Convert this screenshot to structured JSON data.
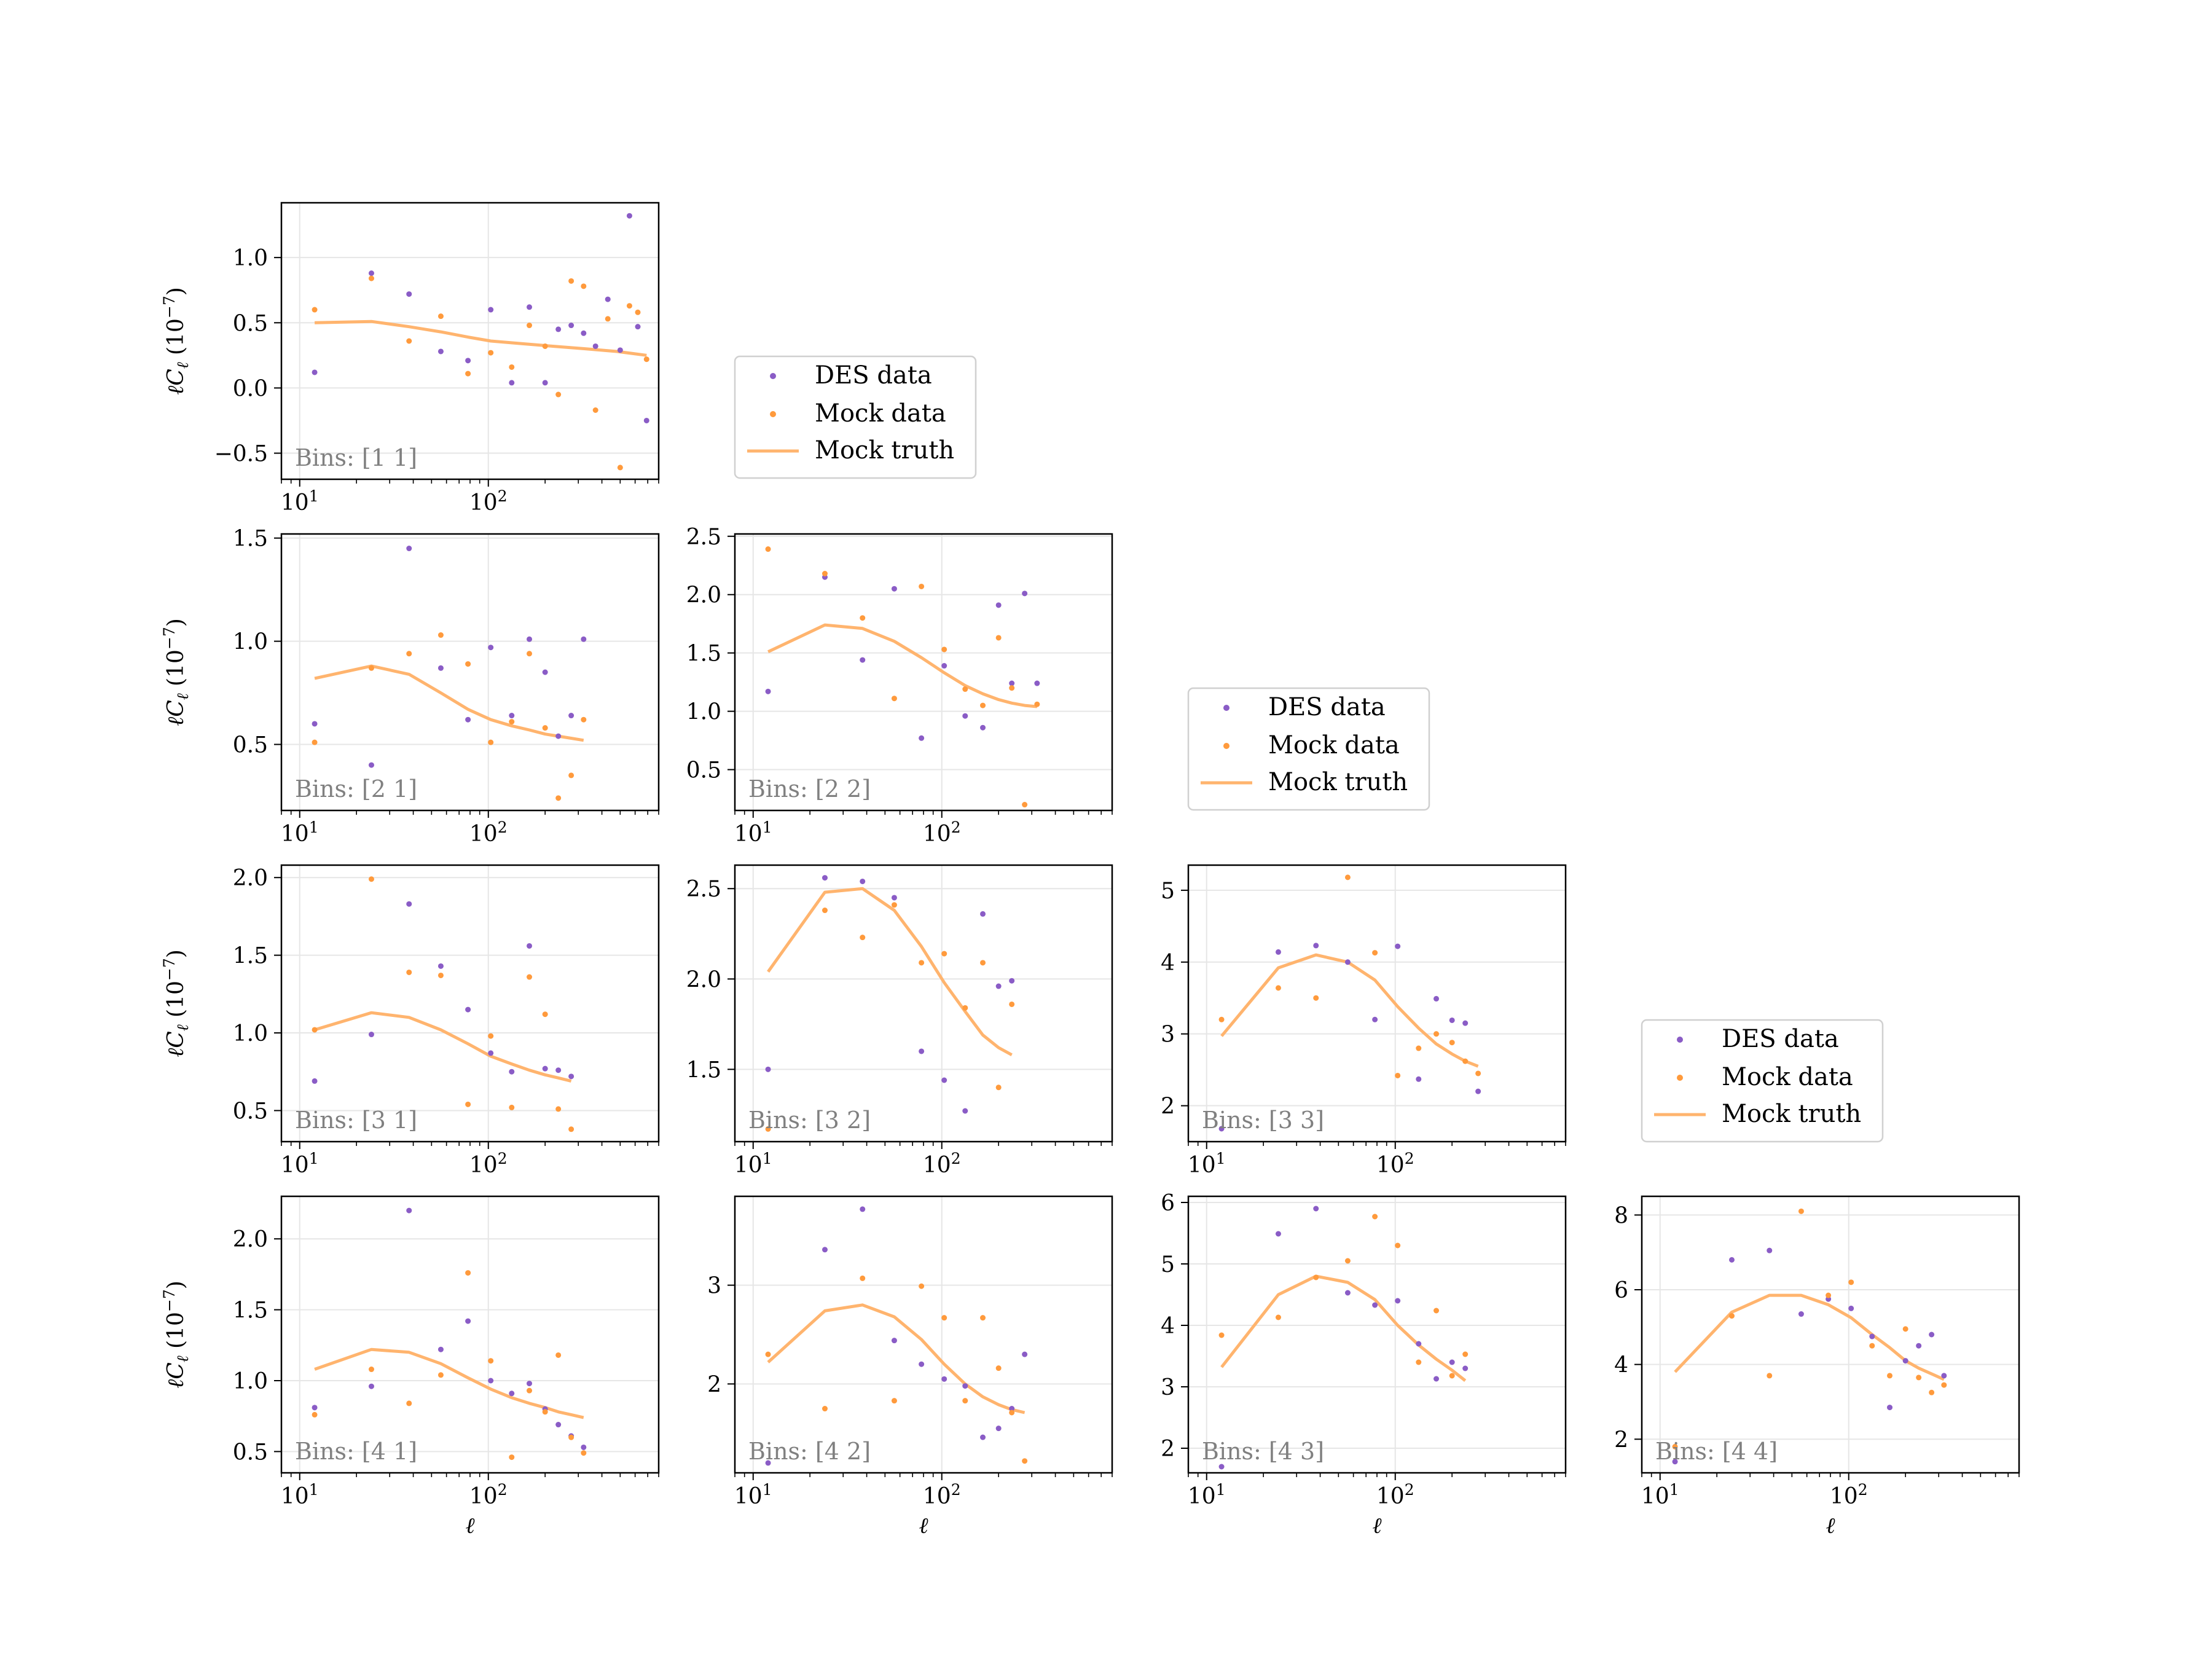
{
  "figure": {
    "colors": {
      "des": "#8a5cc6",
      "mock": "#ff9a3c",
      "truth": "#ffb46e"
    }
  },
  "axis_text": {
    "xlabel": "ℓ",
    "ylabel_main": "ℓC",
    "ylabel_sub": "ℓ",
    "ylabel_units": " (10",
    "ylabel_exp": "−7",
    "ylabel_close": ")",
    "xtick_base": "10",
    "xtick_exp1": "1",
    "xtick_exp2": "2"
  },
  "legend": {
    "entries": [
      "DES data",
      "Mock data",
      "Mock truth"
    ]
  },
  "chart_data": [
    {
      "type": "scatter",
      "title": "Bins: [1 1]",
      "xlabel": "",
      "ylabel": "ℓCℓ (10−7)",
      "xscale": "log",
      "xlim": [
        8,
        800
      ],
      "ylim": [
        -0.7,
        1.42
      ],
      "yticks": [
        -0.5,
        0.0,
        0.5,
        1.0
      ],
      "ytick_labels": [
        "−0.5",
        "0.0",
        "0.5",
        "1.0"
      ],
      "series": [
        {
          "name": "DES data",
          "x": [
            12,
            24,
            38,
            56,
            78,
            103,
            133,
            165,
            200,
            235,
            275,
            320,
            370,
            430,
            500,
            560,
            620,
            690
          ],
          "y": [
            0.12,
            0.88,
            0.72,
            0.28,
            0.21,
            0.6,
            0.04,
            0.62,
            0.04,
            0.45,
            0.48,
            0.42,
            0.32,
            0.68,
            0.29,
            1.32,
            0.47,
            -0.25
          ]
        },
        {
          "name": "Mock data",
          "x": [
            12,
            24,
            38,
            56,
            78,
            103,
            133,
            165,
            200,
            235,
            275,
            320,
            370,
            430,
            500,
            560,
            620,
            690
          ],
          "y": [
            0.6,
            0.84,
            0.36,
            0.55,
            0.11,
            0.27,
            0.16,
            0.48,
            0.32,
            -0.05,
            0.82,
            0.78,
            -0.17,
            0.53,
            -0.61,
            0.63,
            0.58,
            0.22
          ]
        },
        {
          "name": "Mock truth",
          "x": [
            12,
            24,
            38,
            56,
            78,
            103,
            150,
            220,
            330,
            480,
            690
          ],
          "y": [
            0.5,
            0.51,
            0.47,
            0.43,
            0.39,
            0.36,
            0.34,
            0.32,
            0.3,
            0.28,
            0.25
          ]
        }
      ]
    },
    {
      "type": "scatter",
      "title": "Bins: [2 1]",
      "xlabel": "",
      "ylabel": "ℓCℓ (10−7)",
      "xscale": "log",
      "xlim": [
        8,
        800
      ],
      "ylim": [
        0.18,
        1.52
      ],
      "yticks": [
        0.5,
        1.0,
        1.5
      ],
      "ytick_labels": [
        "0.5",
        "1.0",
        "1.5"
      ],
      "series": [
        {
          "name": "DES data",
          "x": [
            12,
            24,
            38,
            56,
            78,
            103,
            133,
            165,
            200,
            235,
            275,
            320
          ],
          "y": [
            0.6,
            0.4,
            1.45,
            0.87,
            0.62,
            0.97,
            0.64,
            1.01,
            0.85,
            0.54,
            0.64,
            1.01
          ]
        },
        {
          "name": "Mock data",
          "x": [
            12,
            24,
            38,
            56,
            78,
            103,
            133,
            165,
            200,
            235,
            275,
            320
          ],
          "y": [
            0.51,
            0.87,
            0.94,
            1.03,
            0.89,
            0.51,
            0.61,
            0.94,
            0.58,
            0.24,
            0.35,
            0.62
          ]
        },
        {
          "name": "Mock truth",
          "x": [
            12,
            24,
            38,
            56,
            78,
            103,
            133,
            165,
            200,
            235,
            275,
            320
          ],
          "y": [
            0.82,
            0.88,
            0.84,
            0.75,
            0.67,
            0.62,
            0.59,
            0.57,
            0.55,
            0.54,
            0.53,
            0.52
          ]
        }
      ]
    },
    {
      "type": "scatter",
      "title": "Bins: [2 2]",
      "xlabel": "",
      "ylabel": "",
      "xscale": "log",
      "xlim": [
        8,
        800
      ],
      "ylim": [
        0.15,
        2.52
      ],
      "yticks": [
        0.5,
        1.0,
        1.5,
        2.0,
        2.5
      ],
      "ytick_labels": [
        "0.5",
        "1.0",
        "1.5",
        "2.0",
        "2.5"
      ],
      "series": [
        {
          "name": "DES data",
          "x": [
            12,
            24,
            38,
            56,
            78,
            103,
            133,
            165,
            200,
            235,
            275,
            320
          ],
          "y": [
            1.17,
            2.15,
            1.44,
            2.05,
            0.77,
            1.39,
            0.96,
            0.86,
            1.91,
            1.24,
            2.01,
            1.24
          ]
        },
        {
          "name": "Mock data",
          "x": [
            12,
            24,
            38,
            56,
            78,
            103,
            133,
            165,
            200,
            235,
            275,
            320
          ],
          "y": [
            2.39,
            2.18,
            1.8,
            1.11,
            2.07,
            1.53,
            1.19,
            1.05,
            1.63,
            1.2,
            0.2,
            1.06
          ]
        },
        {
          "name": "Mock truth",
          "x": [
            12,
            24,
            38,
            56,
            78,
            103,
            133,
            165,
            200,
            235,
            275,
            320
          ],
          "y": [
            1.51,
            1.74,
            1.71,
            1.6,
            1.46,
            1.33,
            1.22,
            1.15,
            1.1,
            1.07,
            1.05,
            1.04
          ]
        }
      ]
    },
    {
      "type": "scatter",
      "title": "Bins: [3 1]",
      "xlabel": "",
      "ylabel": "ℓCℓ (10−7)",
      "xscale": "log",
      "xlim": [
        8,
        800
      ],
      "ylim": [
        0.3,
        2.08
      ],
      "yticks": [
        0.5,
        1.0,
        1.5,
        2.0
      ],
      "ytick_labels": [
        "0.5",
        "1.0",
        "1.5",
        "2.0"
      ],
      "series": [
        {
          "name": "DES data",
          "x": [
            12,
            24,
            38,
            56,
            78,
            103,
            133,
            165,
            200,
            235,
            275
          ],
          "y": [
            0.69,
            0.99,
            1.83,
            1.43,
            1.15,
            0.87,
            0.75,
            1.56,
            0.77,
            0.76,
            0.72
          ]
        },
        {
          "name": "Mock data",
          "x": [
            12,
            24,
            38,
            56,
            78,
            103,
            133,
            165,
            200,
            235,
            275
          ],
          "y": [
            1.02,
            1.99,
            1.39,
            1.37,
            0.54,
            0.98,
            0.52,
            1.36,
            1.12,
            0.51,
            0.38
          ]
        },
        {
          "name": "Mock truth",
          "x": [
            12,
            24,
            38,
            56,
            78,
            103,
            133,
            165,
            200,
            235,
            275
          ],
          "y": [
            1.02,
            1.13,
            1.1,
            1.02,
            0.93,
            0.85,
            0.8,
            0.76,
            0.73,
            0.71,
            0.69
          ]
        }
      ]
    },
    {
      "type": "scatter",
      "title": "Bins: [3 2]",
      "xlabel": "",
      "ylabel": "",
      "xscale": "log",
      "xlim": [
        8,
        800
      ],
      "ylim": [
        1.1,
        2.63
      ],
      "yticks": [
        1.5,
        2.0,
        2.5
      ],
      "ytick_labels": [
        "1.5",
        "2.0",
        "2.5"
      ],
      "series": [
        {
          "name": "DES data",
          "x": [
            12,
            24,
            38,
            56,
            78,
            103,
            133,
            165,
            200,
            235
          ],
          "y": [
            1.5,
            2.56,
            2.54,
            2.45,
            1.6,
            1.44,
            1.27,
            2.36,
            1.96,
            1.99
          ]
        },
        {
          "name": "Mock data",
          "x": [
            12,
            24,
            38,
            56,
            78,
            103,
            133,
            165,
            200,
            235
          ],
          "y": [
            1.17,
            2.38,
            2.23,
            2.41,
            2.09,
            2.14,
            1.84,
            2.09,
            1.4,
            1.86
          ]
        },
        {
          "name": "Mock truth",
          "x": [
            12,
            24,
            38,
            56,
            78,
            103,
            133,
            165,
            200,
            235
          ],
          "y": [
            2.04,
            2.48,
            2.5,
            2.38,
            2.18,
            1.98,
            1.82,
            1.69,
            1.62,
            1.58
          ]
        }
      ]
    },
    {
      "type": "scatter",
      "title": "Bins: [3 3]",
      "xlabel": "",
      "ylabel": "",
      "xscale": "log",
      "xlim": [
        8,
        800
      ],
      "ylim": [
        1.5,
        5.35
      ],
      "yticks": [
        2,
        3,
        4,
        5
      ],
      "ytick_labels": [
        "2",
        "3",
        "4",
        "5"
      ],
      "series": [
        {
          "name": "DES data",
          "x": [
            12,
            24,
            38,
            56,
            78,
            103,
            133,
            165,
            200,
            235,
            275
          ],
          "y": [
            1.68,
            4.14,
            4.23,
            4.0,
            3.2,
            4.22,
            2.37,
            3.49,
            3.19,
            3.15,
            2.2
          ]
        },
        {
          "name": "Mock data",
          "x": [
            12,
            24,
            38,
            56,
            78,
            103,
            133,
            165,
            200,
            235,
            275
          ],
          "y": [
            3.2,
            3.64,
            3.5,
            5.18,
            4.13,
            2.42,
            2.8,
            3.0,
            2.88,
            2.62,
            2.45
          ]
        },
        {
          "name": "Mock truth",
          "x": [
            12,
            24,
            38,
            56,
            78,
            103,
            133,
            165,
            200,
            235,
            275
          ],
          "y": [
            2.97,
            3.92,
            4.1,
            4.0,
            3.75,
            3.38,
            3.08,
            2.86,
            2.72,
            2.62,
            2.55
          ]
        }
      ]
    },
    {
      "type": "scatter",
      "title": "Bins: [4 1]",
      "xlabel": "ℓ",
      "ylabel": "ℓCℓ (10−7)",
      "xscale": "log",
      "xlim": [
        8,
        800
      ],
      "ylim": [
        0.35,
        2.3
      ],
      "yticks": [
        0.5,
        1.0,
        1.5,
        2.0
      ],
      "ytick_labels": [
        "0.5",
        "1.0",
        "1.5",
        "2.0"
      ],
      "series": [
        {
          "name": "DES data",
          "x": [
            12,
            24,
            38,
            56,
            78,
            103,
            133,
            165,
            200,
            235,
            275,
            320
          ],
          "y": [
            0.81,
            0.96,
            2.2,
            1.22,
            1.42,
            1.0,
            0.91,
            0.98,
            0.8,
            0.69,
            0.61,
            0.53
          ]
        },
        {
          "name": "Mock data",
          "x": [
            12,
            24,
            38,
            56,
            78,
            103,
            133,
            165,
            200,
            235,
            275,
            320
          ],
          "y": [
            0.76,
            1.08,
            0.84,
            1.04,
            1.76,
            1.14,
            0.46,
            0.93,
            0.78,
            1.18,
            0.6,
            0.49
          ]
        },
        {
          "name": "Mock truth",
          "x": [
            12,
            24,
            38,
            56,
            78,
            103,
            133,
            165,
            200,
            235,
            275,
            320
          ],
          "y": [
            1.08,
            1.22,
            1.2,
            1.12,
            1.02,
            0.94,
            0.88,
            0.84,
            0.81,
            0.78,
            0.76,
            0.74
          ]
        }
      ]
    },
    {
      "type": "scatter",
      "title": "Bins: [4 2]",
      "xlabel": "ℓ",
      "ylabel": "",
      "xscale": "log",
      "xlim": [
        8,
        800
      ],
      "ylim": [
        1.1,
        3.9
      ],
      "yticks": [
        2,
        3
      ],
      "ytick_labels": [
        "2",
        "3"
      ],
      "series": [
        {
          "name": "DES data",
          "x": [
            12,
            24,
            38,
            56,
            78,
            103,
            133,
            165,
            200,
            235,
            275
          ],
          "y": [
            1.2,
            3.36,
            3.77,
            2.44,
            2.2,
            2.05,
            1.98,
            1.46,
            1.55,
            1.75,
            2.3
          ]
        },
        {
          "name": "Mock data",
          "x": [
            12,
            24,
            38,
            56,
            78,
            103,
            133,
            165,
            200,
            235,
            275
          ],
          "y": [
            2.3,
            1.75,
            3.07,
            1.83,
            2.99,
            2.67,
            1.83,
            2.67,
            2.16,
            1.71,
            1.22
          ]
        },
        {
          "name": "Mock truth",
          "x": [
            12,
            24,
            38,
            56,
            78,
            103,
            133,
            165,
            200,
            235,
            275
          ],
          "y": [
            2.22,
            2.74,
            2.8,
            2.68,
            2.45,
            2.2,
            2.0,
            1.87,
            1.79,
            1.74,
            1.71
          ]
        }
      ]
    },
    {
      "type": "scatter",
      "title": "Bins: [4 3]",
      "xlabel": "ℓ",
      "ylabel": "",
      "xscale": "log",
      "xlim": [
        8,
        800
      ],
      "ylim": [
        1.6,
        6.1
      ],
      "yticks": [
        2,
        3,
        4,
        5,
        6
      ],
      "ytick_labels": [
        "2",
        "3",
        "4",
        "5",
        "6"
      ],
      "series": [
        {
          "name": "DES data",
          "x": [
            12,
            24,
            38,
            56,
            78,
            103,
            133,
            165,
            200,
            235
          ],
          "y": [
            1.7,
            5.49,
            5.9,
            4.53,
            4.33,
            4.4,
            3.7,
            3.13,
            3.4,
            3.3
          ]
        },
        {
          "name": "Mock data",
          "x": [
            12,
            24,
            38,
            56,
            78,
            103,
            133,
            165,
            200,
            235
          ],
          "y": [
            3.84,
            4.13,
            4.78,
            5.05,
            5.77,
            5.3,
            3.4,
            4.24,
            3.18,
            3.53
          ]
        },
        {
          "name": "Mock truth",
          "x": [
            12,
            24,
            38,
            56,
            78,
            103,
            133,
            165,
            200,
            235
          ],
          "y": [
            3.32,
            4.5,
            4.8,
            4.7,
            4.42,
            4.0,
            3.68,
            3.45,
            3.27,
            3.1
          ]
        }
      ]
    },
    {
      "type": "scatter",
      "title": "Bins: [4 4]",
      "xlabel": "ℓ",
      "ylabel": "",
      "xscale": "log",
      "xlim": [
        8,
        800
      ],
      "ylim": [
        1.1,
        8.5
      ],
      "yticks": [
        2,
        4,
        6,
        8
      ],
      "ytick_labels": [
        "2",
        "4",
        "6",
        "8"
      ],
      "series": [
        {
          "name": "DES data",
          "x": [
            12,
            24,
            38,
            56,
            78,
            103,
            133,
            165,
            200,
            235,
            275,
            320
          ],
          "y": [
            1.4,
            6.8,
            7.05,
            5.35,
            5.75,
            5.5,
            4.75,
            2.85,
            4.1,
            4.5,
            4.8,
            3.7
          ]
        },
        {
          "name": "Mock data",
          "x": [
            12,
            24,
            38,
            56,
            78,
            103,
            133,
            165,
            200,
            235,
            275,
            320
          ],
          "y": [
            1.8,
            5.3,
            3.7,
            8.1,
            5.85,
            6.2,
            4.5,
            3.7,
            4.95,
            3.65,
            3.25,
            3.45
          ]
        },
        {
          "name": "Mock truth",
          "x": [
            12,
            24,
            38,
            56,
            78,
            103,
            133,
            165,
            200,
            235,
            275,
            320
          ],
          "y": [
            3.8,
            5.4,
            5.85,
            5.85,
            5.6,
            5.25,
            4.8,
            4.45,
            4.1,
            3.9,
            3.75,
            3.6
          ]
        }
      ]
    }
  ]
}
